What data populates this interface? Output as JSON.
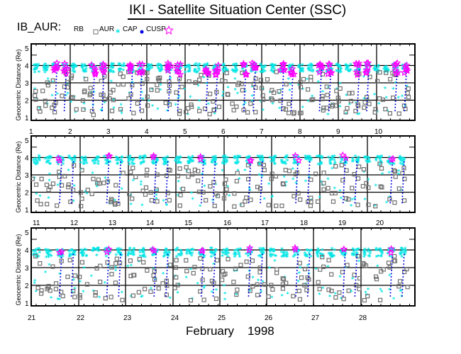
{
  "header": {
    "title": "IKI - Satellite Situation Center (SSC)",
    "satellite_label": "IB_AUR:"
  },
  "legend": [
    {
      "label": "RB",
      "symbol": "none",
      "color": "#000000"
    },
    {
      "label": "AUR",
      "symbol": "open-square",
      "color": "#707070"
    },
    {
      "label": "CAP",
      "symbol": "asterisk",
      "color": "#00e5e5"
    },
    {
      "label": "CUSP",
      "symbol": "dot",
      "color": "#0000e0"
    },
    {
      "label": "",
      "symbol": "open-star",
      "color": "#ff00ff"
    }
  ],
  "footer": {
    "month": "February",
    "year": "1998"
  },
  "chart_data": {
    "type": "scatter",
    "title": "IKI - Satellite Situation Center (SSC)",
    "subtitle": "IB_AUR:",
    "xlabel": "February 1998",
    "ylabel": "Geocentric Distance (Re)",
    "ylim": [
      1,
      5
    ],
    "yticks": [
      1,
      2,
      3,
      4,
      5
    ],
    "grid": true,
    "legend_position": "top-left",
    "orbit_apogee_re": 4.0,
    "orbits_per_day": 4,
    "series": [
      {
        "name": "AUR",
        "color": "#707070",
        "marker": "open-square",
        "range_re": [
          1.0,
          3.7
        ]
      },
      {
        "name": "CAP",
        "color": "#00e5e5",
        "marker": "asterisk",
        "range_re": [
          1.2,
          4.1
        ]
      },
      {
        "name": "CUSP",
        "color": "#0000e0",
        "marker": "dot",
        "range_re": [
          1.2,
          4.0
        ]
      },
      {
        "name": "CUSP-star",
        "color": "#ff00ff",
        "marker": "open-star",
        "range_re": [
          3.3,
          4.2
        ]
      }
    ],
    "panels": [
      {
        "days": [
          1,
          2,
          3,
          4,
          5,
          6,
          7,
          8,
          9,
          10
        ]
      },
      {
        "days": [
          11,
          12,
          13,
          14,
          15,
          16,
          17,
          18,
          19,
          20
        ]
      },
      {
        "days": [
          21,
          22,
          23,
          24,
          25,
          26,
          27,
          28
        ]
      }
    ]
  }
}
